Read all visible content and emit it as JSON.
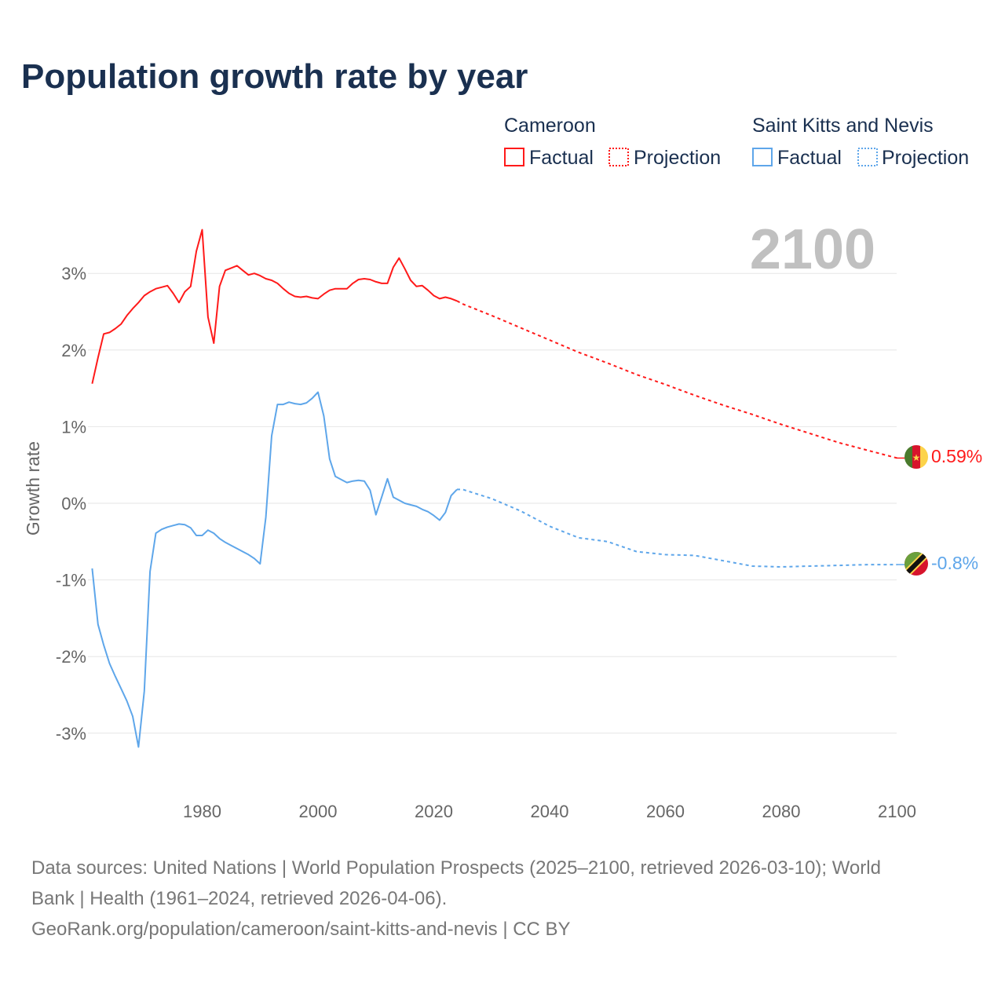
{
  "chart_data": {
    "type": "line",
    "title": "Population growth rate by year",
    "ylabel": "Growth rate",
    "xlabel": "",
    "xlim": [
      1960,
      2100
    ],
    "ylim": [
      -3.6,
      3.9
    ],
    "x_ticks": [
      1980,
      2000,
      2020,
      2040,
      2060,
      2080,
      2100
    ],
    "y_ticks": [
      3,
      2,
      1,
      0,
      -1,
      -2,
      -3
    ],
    "y_tick_labels": [
      "3%",
      "2%",
      "1%",
      "0%",
      "-1%",
      "-2%",
      "-3%"
    ],
    "grid": true,
    "current_year_label": "2100",
    "legend": {
      "placement": "top-right",
      "groups": [
        {
          "name": "Cameroon",
          "factual": "Factual",
          "projection": "Projection"
        },
        {
          "name": "Saint Kitts and Nevis",
          "factual": "Factual",
          "projection": "Projection"
        }
      ]
    },
    "series": [
      {
        "name": "Cameroon",
        "color": "#ff1a1a",
        "end_label": "0.59%",
        "factual": {
          "x": [
            1961,
            1962,
            1963,
            1964,
            1965,
            1966,
            1967,
            1968,
            1969,
            1970,
            1971,
            1972,
            1973,
            1974,
            1975,
            1976,
            1977,
            1978,
            1979,
            1980,
            1981,
            1982,
            1983,
            1984,
            1985,
            1986,
            1987,
            1988,
            1989,
            1990,
            1991,
            1992,
            1993,
            1994,
            1995,
            1996,
            1997,
            1998,
            1999,
            2000,
            2001,
            2002,
            2003,
            2004,
            2005,
            2006,
            2007,
            2008,
            2009,
            2010,
            2011,
            2012,
            2013,
            2014,
            2015,
            2016,
            2017,
            2018,
            2019,
            2020,
            2021,
            2022,
            2023,
            2024
          ],
          "y": [
            1.56,
            1.9,
            2.21,
            2.23,
            2.28,
            2.34,
            2.45,
            2.54,
            2.62,
            2.71,
            2.76,
            2.8,
            2.82,
            2.84,
            2.74,
            2.62,
            2.76,
            2.83,
            3.29,
            3.57,
            2.43,
            2.09,
            2.83,
            3.04,
            3.07,
            3.1,
            3.04,
            2.98,
            3.0,
            2.97,
            2.93,
            2.91,
            2.87,
            2.8,
            2.74,
            2.7,
            2.69,
            2.7,
            2.68,
            2.67,
            2.73,
            2.78,
            2.8,
            2.8,
            2.8,
            2.87,
            2.92,
            2.93,
            2.92,
            2.89,
            2.87,
            2.87,
            3.08,
            3.2,
            3.06,
            2.91,
            2.83,
            2.84,
            2.78,
            2.71,
            2.67,
            2.69,
            2.67,
            2.64
          ]
        },
        "projection": {
          "x": [
            2024,
            2025,
            2030,
            2035,
            2040,
            2045,
            2050,
            2055,
            2060,
            2065,
            2070,
            2075,
            2080,
            2085,
            2090,
            2095,
            2100
          ],
          "y": [
            2.64,
            2.6,
            2.45,
            2.29,
            2.13,
            1.97,
            1.83,
            1.68,
            1.55,
            1.41,
            1.28,
            1.16,
            1.03,
            0.91,
            0.79,
            0.69,
            0.59
          ]
        }
      },
      {
        "name": "Saint Kitts and Nevis",
        "color": "#5ea6ea",
        "end_label": "-0.8%",
        "factual": {
          "x": [
            1961,
            1962,
            1963,
            1964,
            1965,
            1966,
            1967,
            1968,
            1969,
            1970,
            1971,
            1972,
            1973,
            1974,
            1975,
            1976,
            1977,
            1978,
            1979,
            1980,
            1981,
            1982,
            1983,
            1984,
            1985,
            1986,
            1987,
            1988,
            1989,
            1990,
            1991,
            1992,
            1993,
            1994,
            1995,
            1996,
            1997,
            1998,
            1999,
            2000,
            2001,
            2002,
            2003,
            2004,
            2005,
            2006,
            2007,
            2008,
            2009,
            2010,
            2011,
            2012,
            2013,
            2014,
            2015,
            2016,
            2017,
            2018,
            2019,
            2020,
            2021,
            2022,
            2023,
            2024
          ],
          "y": [
            -0.85,
            -1.58,
            -1.85,
            -2.09,
            -2.26,
            -2.42,
            -2.58,
            -2.78,
            -3.18,
            -2.45,
            -0.89,
            -0.39,
            -0.34,
            -0.31,
            -0.29,
            -0.27,
            -0.28,
            -0.32,
            -0.42,
            -0.42,
            -0.35,
            -0.39,
            -0.46,
            -0.51,
            -0.55,
            -0.59,
            -0.63,
            -0.67,
            -0.72,
            -0.79,
            -0.18,
            0.88,
            1.29,
            1.29,
            1.32,
            1.3,
            1.29,
            1.31,
            1.37,
            1.45,
            1.14,
            0.58,
            0.35,
            0.31,
            0.27,
            0.29,
            0.3,
            0.29,
            0.17,
            -0.15,
            0.08,
            0.32,
            0.08,
            0.04,
            0.0,
            -0.02,
            -0.04,
            -0.08,
            -0.11,
            -0.16,
            -0.22,
            -0.12,
            0.1,
            0.18
          ]
        },
        "projection": {
          "x": [
            2024,
            2025,
            2030,
            2035,
            2040,
            2045,
            2050,
            2055,
            2060,
            2065,
            2070,
            2075,
            2080,
            2085,
            2090,
            2095,
            2100
          ],
          "y": [
            0.18,
            0.18,
            0.06,
            -0.1,
            -0.3,
            -0.45,
            -0.5,
            -0.63,
            -0.67,
            -0.68,
            -0.75,
            -0.82,
            -0.83,
            -0.82,
            -0.81,
            -0.8,
            -0.8
          ]
        }
      }
    ]
  },
  "footer": {
    "line1": "Data sources: United Nations | World Population Prospects (2025–2100, retrieved 2026-03-10); World",
    "line2": "Bank | Health (1961–2024, retrieved 2026-04-06).",
    "line3": "GeoRank.org/population/cameroon/saint-kitts-and-nevis | CC BY"
  }
}
